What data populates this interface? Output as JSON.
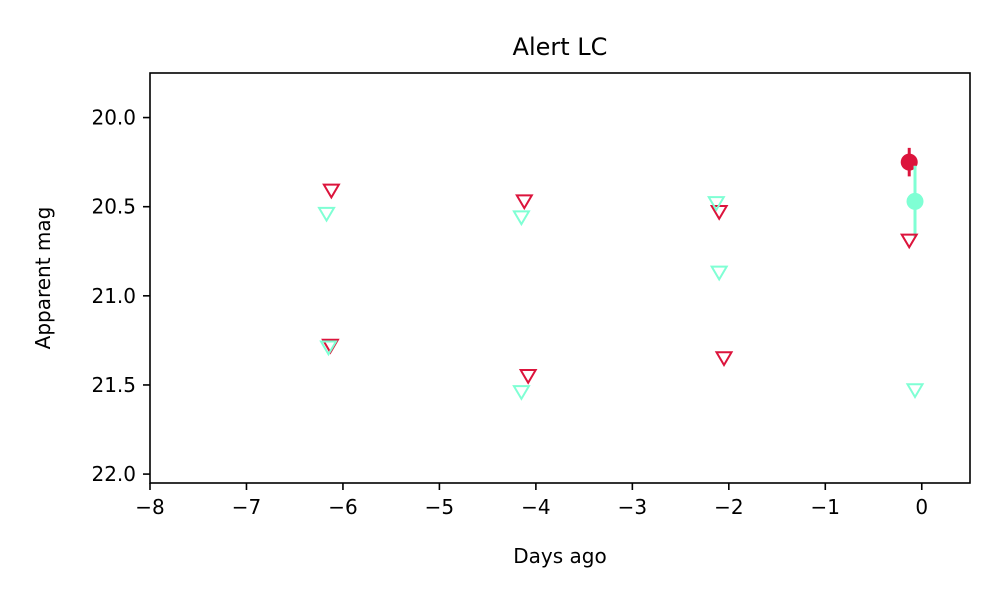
{
  "chart_data": {
    "type": "scatter",
    "title": "Alert LC",
    "xlabel": "Days ago",
    "ylabel": "Apparent mag",
    "xlim": [
      -8,
      0.5
    ],
    "ylim": [
      22.05,
      19.75
    ],
    "y_inverted": true,
    "grid": false,
    "xticks": [
      -8,
      -7,
      -6,
      -5,
      -4,
      -3,
      -2,
      -1,
      0
    ],
    "xtick_labels": [
      "−8",
      "−7",
      "−6",
      "−5",
      "−4",
      "−3",
      "−2",
      "−1",
      "0"
    ],
    "yticks": [
      20.0,
      20.5,
      21.0,
      21.5,
      22.0
    ],
    "ytick_labels": [
      "20.0",
      "20.5",
      "21.0",
      "21.5",
      "22.0"
    ],
    "series": [
      {
        "color": "#dc143c",
        "marker": "circle-filled",
        "x": [
          -0.13
        ],
        "y": [
          20.25
        ],
        "yerr": [
          0.08
        ]
      },
      {
        "color": "#7fffd4",
        "marker": "circle-filled",
        "x": [
          -0.07
        ],
        "y": [
          20.47
        ],
        "yerr": [
          0.2
        ]
      },
      {
        "color": "#dc143c",
        "marker": "triangle-down-open",
        "x": [
          -6.12,
          -6.13,
          -4.12,
          -4.08,
          -2.1,
          -2.05,
          -0.13
        ],
        "y": [
          20.41,
          21.28,
          20.47,
          21.45,
          20.53,
          21.35,
          20.69
        ]
      },
      {
        "color": "#7fffd4",
        "marker": "triangle-down-open",
        "x": [
          -6.17,
          -6.15,
          -4.15,
          -4.15,
          -2.13,
          -2.1,
          -0.07
        ],
        "y": [
          20.54,
          21.29,
          20.56,
          21.54,
          20.48,
          20.87,
          21.53
        ]
      }
    ]
  }
}
